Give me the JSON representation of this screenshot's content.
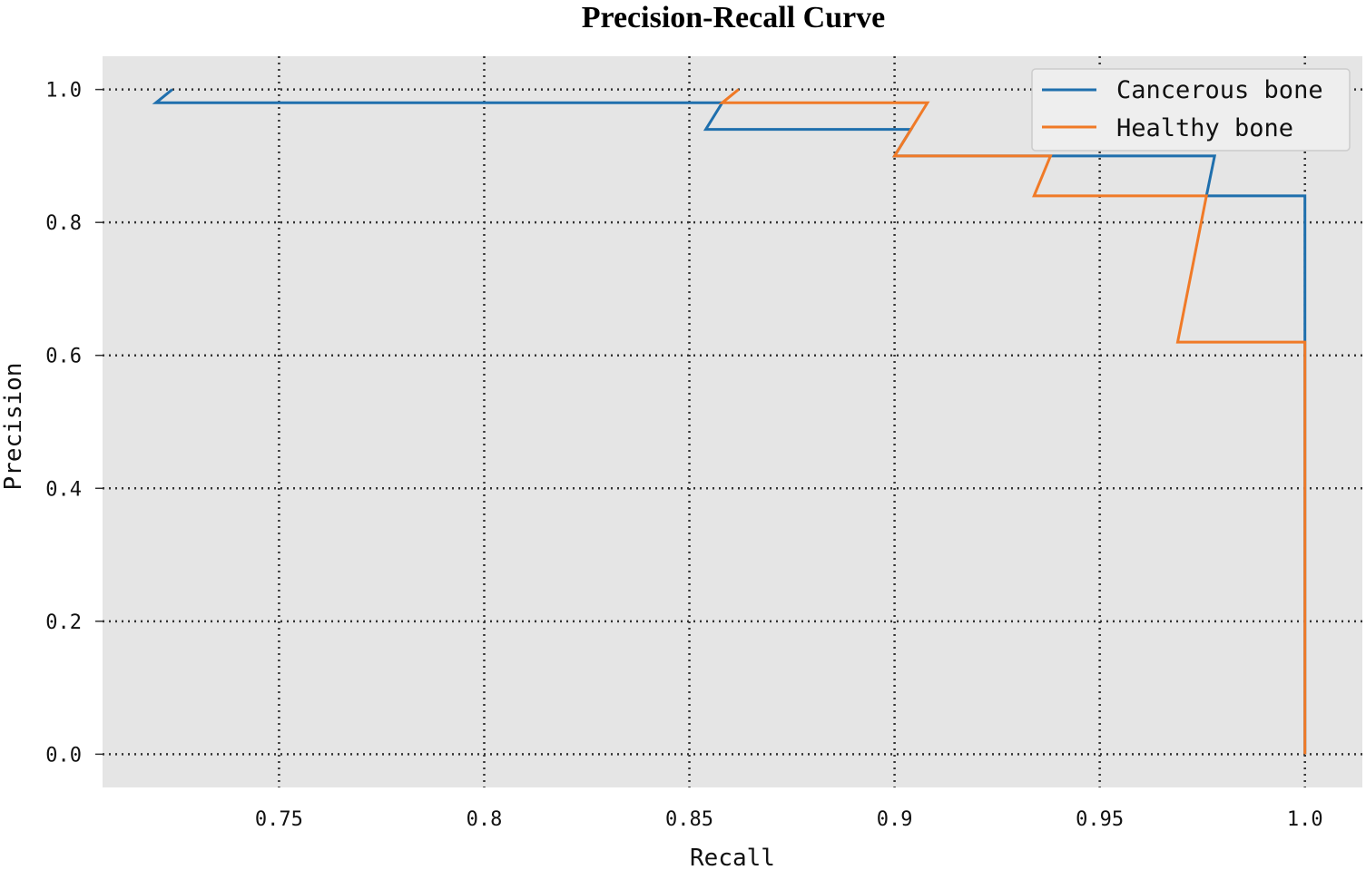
{
  "chart_data": {
    "type": "line",
    "title": "Precision-Recall Curve",
    "xlabel": "Recall",
    "ylabel": "Precision",
    "xlim": [
      0.707,
      1.014
    ],
    "ylim": [
      -0.05,
      1.05
    ],
    "xticks": [
      0.75,
      0.8,
      0.85,
      0.9,
      0.95,
      1.0
    ],
    "xtick_labels": [
      "0.75",
      "0.8",
      "0.85",
      "0.9",
      "0.95",
      "1.0"
    ],
    "yticks": [
      0.0,
      0.2,
      0.4,
      0.6,
      0.8,
      1.0
    ],
    "ytick_labels": [
      "0.0",
      "0.2",
      "0.4",
      "0.6",
      "0.8",
      "1.0"
    ],
    "grid": true,
    "legend_position": "top-right",
    "background": "#e5e5e5",
    "series": [
      {
        "name": "Cancerous bone",
        "color": "#1f6fad",
        "x": [
          0.724,
          0.72,
          0.858,
          0.854,
          0.904,
          0.9,
          0.978,
          0.976,
          1.0,
          1.0
        ],
        "y": [
          1.0,
          0.98,
          0.98,
          0.94,
          0.94,
          0.9,
          0.9,
          0.84,
          0.84,
          0.0
        ]
      },
      {
        "name": "Healthy bone",
        "color": "#f07a27",
        "x": [
          0.862,
          0.858,
          0.908,
          0.9,
          0.938,
          0.934,
          0.976,
          0.969,
          1.0,
          1.0
        ],
        "y": [
          1.0,
          0.98,
          0.98,
          0.9,
          0.9,
          0.84,
          0.84,
          0.62,
          0.62,
          0.0
        ]
      }
    ]
  }
}
